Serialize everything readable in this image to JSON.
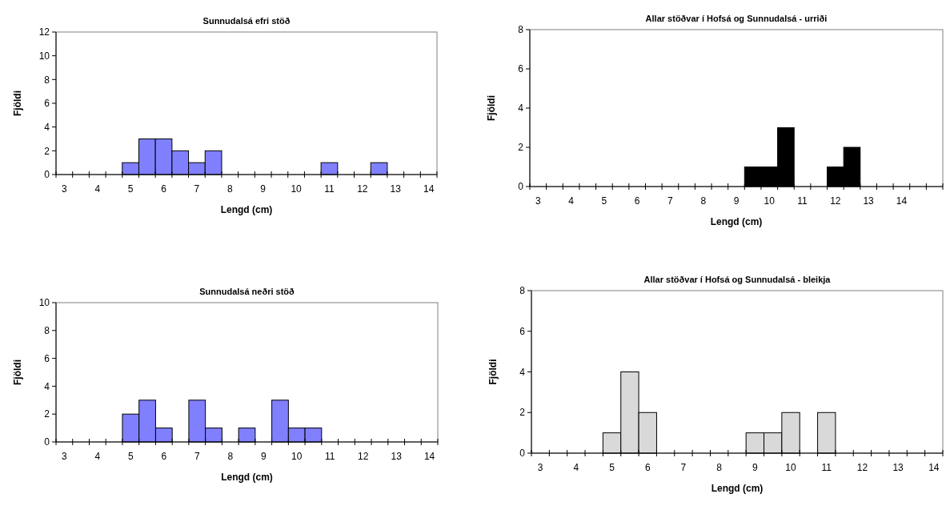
{
  "chart_data": [
    {
      "type": "bar",
      "title": "Sunnudalsá efri stöð",
      "xlabel": "Lengd (cm)",
      "ylabel": "Fjöldi",
      "categories": [
        "3",
        null,
        "4",
        null,
        "5",
        null,
        "6",
        null,
        "7",
        null,
        "8",
        null,
        "9",
        null,
        "10",
        null,
        "11",
        null,
        "12",
        null,
        "13",
        null,
        "14"
      ],
      "values": [
        0,
        0,
        0,
        0,
        1,
        3,
        3,
        2,
        1,
        2,
        0,
        0,
        0,
        0,
        0,
        0,
        1,
        0,
        0,
        1,
        0,
        0,
        0
      ],
      "color": "#8080ff",
      "ylim": [
        0,
        12
      ],
      "yticks": [
        0,
        2,
        4,
        6,
        8,
        10,
        12
      ]
    },
    {
      "type": "bar",
      "title": "Allar stöðvar í Hofsá og Sunnudalsá - urriði",
      "xlabel": "Lengd (cm)",
      "ylabel": "Fjöldi",
      "categories": [
        "3",
        null,
        "4",
        null,
        "5",
        null,
        "6",
        null,
        "7",
        null,
        "8",
        null,
        "9",
        null,
        "10",
        null,
        "11",
        null,
        "12",
        null,
        "13",
        null,
        "14",
        null,
        null
      ],
      "values": [
        0,
        0,
        0,
        0,
        0,
        0,
        0,
        0,
        0,
        0,
        0,
        0,
        0,
        1,
        1,
        3,
        0,
        0,
        1,
        2,
        0,
        0,
        0,
        0,
        0
      ],
      "color": "#000000",
      "ylim": [
        0,
        8
      ],
      "yticks": [
        0,
        2,
        4,
        6,
        8
      ]
    },
    {
      "type": "bar",
      "title": "Sunnudalsá neðri stöð",
      "xlabel": "Lengd (cm)",
      "ylabel": "Fjöldi",
      "categories": [
        "3",
        null,
        "4",
        null,
        "5",
        null,
        "6",
        null,
        "7",
        null,
        "8",
        null,
        "9",
        null,
        "10",
        null,
        "11",
        null,
        "12",
        null,
        "13",
        null,
        "14"
      ],
      "values": [
        0,
        0,
        0,
        0,
        2,
        3,
        1,
        0,
        3,
        1,
        0,
        1,
        0,
        3,
        1,
        1,
        0,
        0,
        0,
        0,
        0,
        0,
        0
      ],
      "color": "#8080ff",
      "ylim": [
        0,
        10
      ],
      "yticks": [
        0,
        2,
        4,
        6,
        8,
        10
      ]
    },
    {
      "type": "bar",
      "title": "Allar stöðvar í Hofsá og Sunnudalsá - bleikja",
      "xlabel": "Lengd (cm)",
      "ylabel": "Fjöldi",
      "categories": [
        "3",
        null,
        "4",
        null,
        "5",
        null,
        "6",
        null,
        "7",
        null,
        "8",
        null,
        "9",
        null,
        "10",
        null,
        "11",
        null,
        "12",
        null,
        "13",
        null,
        "14"
      ],
      "values": [
        0,
        0,
        0,
        0,
        1,
        4,
        2,
        0,
        0,
        0,
        0,
        0,
        1,
        1,
        2,
        0,
        2,
        0,
        0,
        0,
        0,
        0,
        0
      ],
      "color": "#d9d9d9",
      "ylim": [
        0,
        8
      ],
      "yticks": [
        0,
        2,
        4,
        6,
        8
      ]
    }
  ]
}
